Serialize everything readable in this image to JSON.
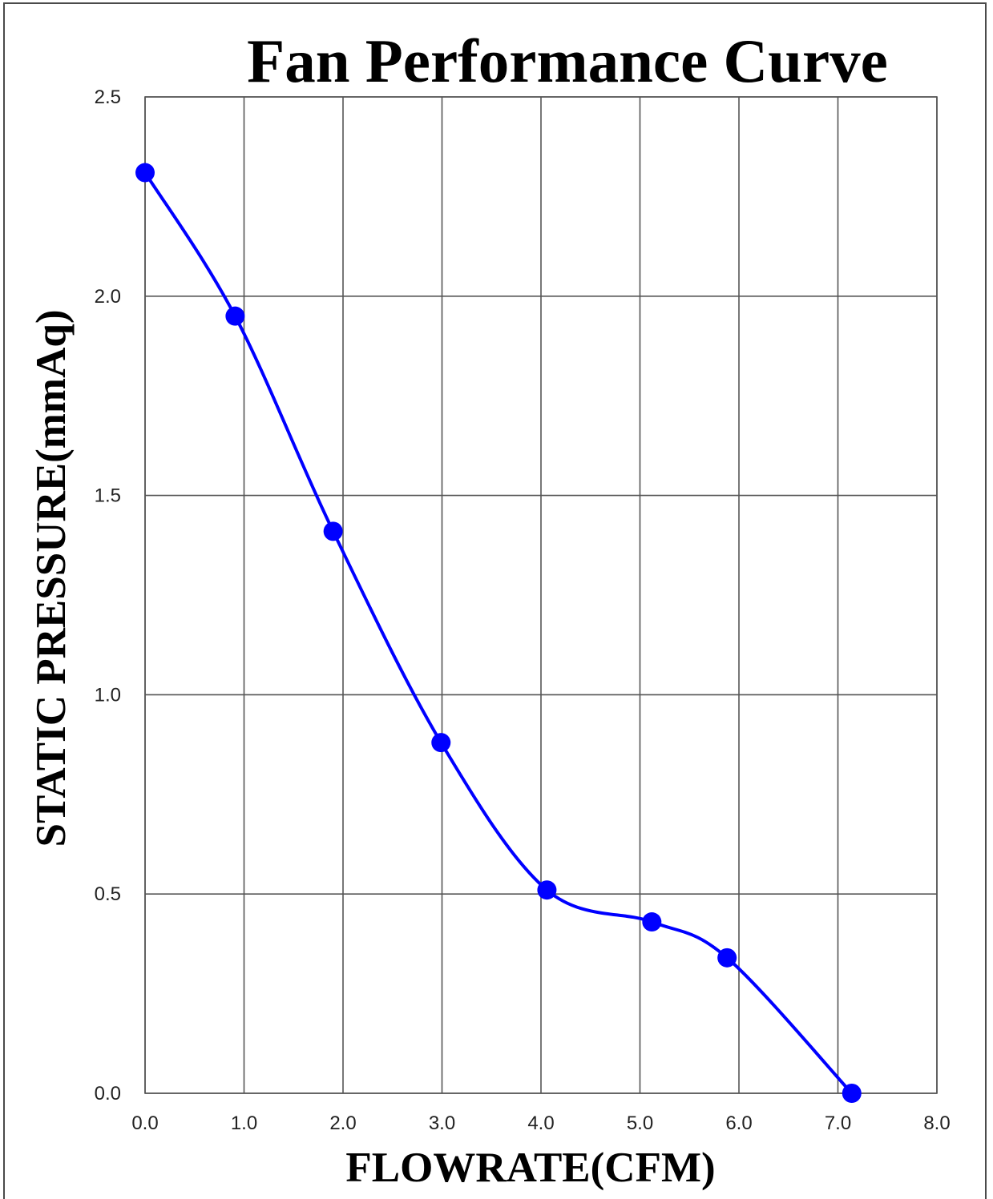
{
  "chart_data": {
    "type": "line",
    "title": "Fan Performance Curve",
    "xlabel": "FLOWRATE(CFM)",
    "ylabel": "STATIC PRESSURE(mmAq)",
    "xlim": [
      0,
      8
    ],
    "ylim": [
      0,
      2.5
    ],
    "x_ticks": [
      "0.0",
      "1.0",
      "2.0",
      "3.0",
      "4.0",
      "5.0",
      "6.0",
      "7.0",
      "8.0"
    ],
    "y_ticks": [
      "0.0",
      "0.5",
      "1.0",
      "1.5",
      "2.0",
      "2.5"
    ],
    "grid": true,
    "series": [
      {
        "color": "#0000ff",
        "x": [
          0.0,
          0.91,
          1.9,
          2.99,
          4.06,
          5.12,
          5.88,
          7.14
        ],
        "y": [
          2.31,
          1.95,
          1.41,
          0.88,
          0.51,
          0.43,
          0.34,
          0.0
        ]
      }
    ]
  }
}
